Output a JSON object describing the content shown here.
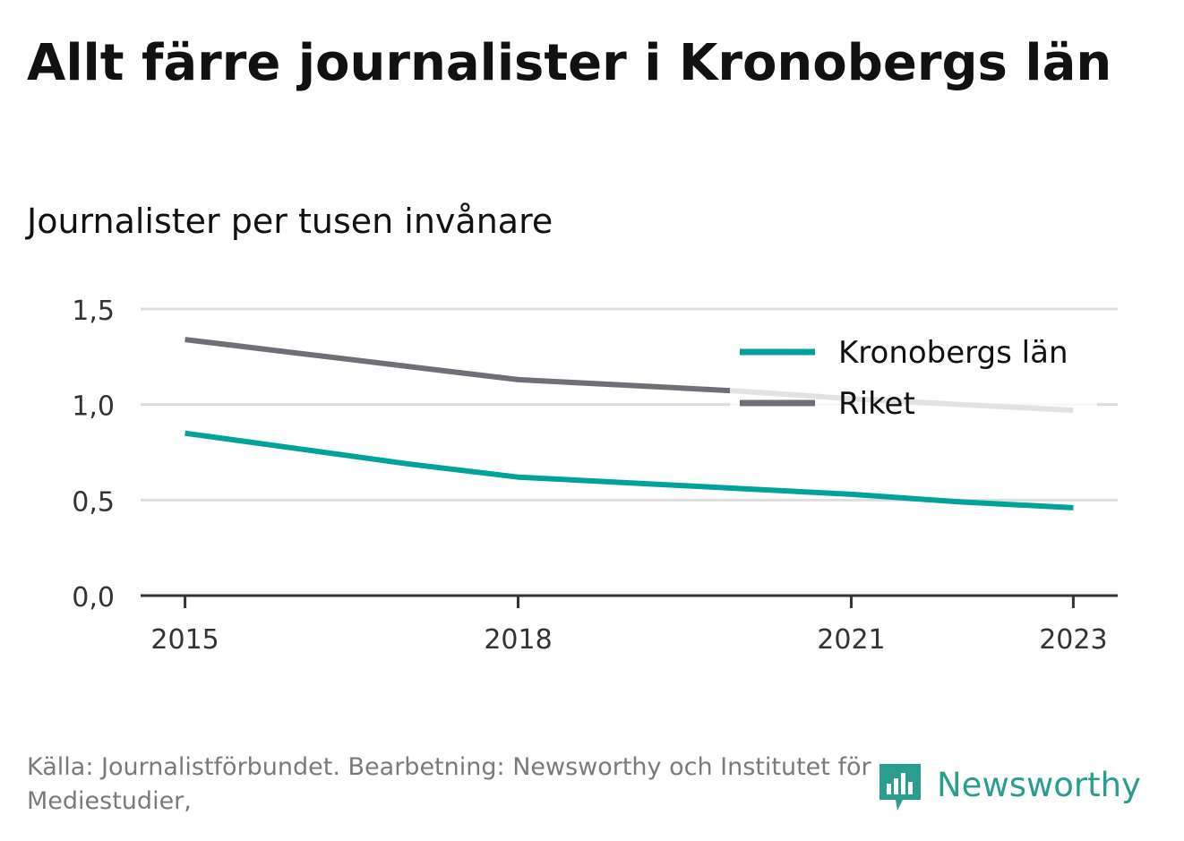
{
  "title": "Allt färre journalister i Kronobergs län",
  "subtitle": "Journalister per tusen invånare",
  "source": "Källa: Journalistförbundet. Bearbetning: Newsworthy och Institutet för Mediestudier,",
  "brand": {
    "name": "Newsworthy",
    "icon": "newsworthy-logo-icon",
    "color": "#2a9d8f"
  },
  "colors": {
    "kronoberg": "#00a398",
    "riket": "#6f6f76",
    "grid": "#dddddd",
    "axis": "#333333"
  },
  "chart_data": {
    "type": "line",
    "x": [
      2015,
      2016,
      2017,
      2018,
      2019,
      2020,
      2021,
      2022,
      2023
    ],
    "xticks": [
      2015,
      2018,
      2021,
      2023
    ],
    "xtick_labels": [
      "2015",
      "2018",
      "2021",
      "2023"
    ],
    "yticks": [
      0,
      0.5,
      1.0,
      1.5
    ],
    "ytick_labels": [
      "0,0",
      "0,5",
      "1,0",
      "1,5"
    ],
    "ylim": [
      0,
      1.5
    ],
    "xlim": [
      2014.6,
      2023.4
    ],
    "grid": true,
    "legend": "top-right",
    "series": [
      {
        "name": "Kronobergs län",
        "values": [
          0.85,
          0.77,
          0.69,
          0.62,
          0.59,
          0.56,
          0.53,
          0.49,
          0.46
        ]
      },
      {
        "name": "Riket",
        "values": [
          1.34,
          1.27,
          1.2,
          1.13,
          1.1,
          1.07,
          1.03,
          1.0,
          0.97
        ]
      }
    ]
  }
}
